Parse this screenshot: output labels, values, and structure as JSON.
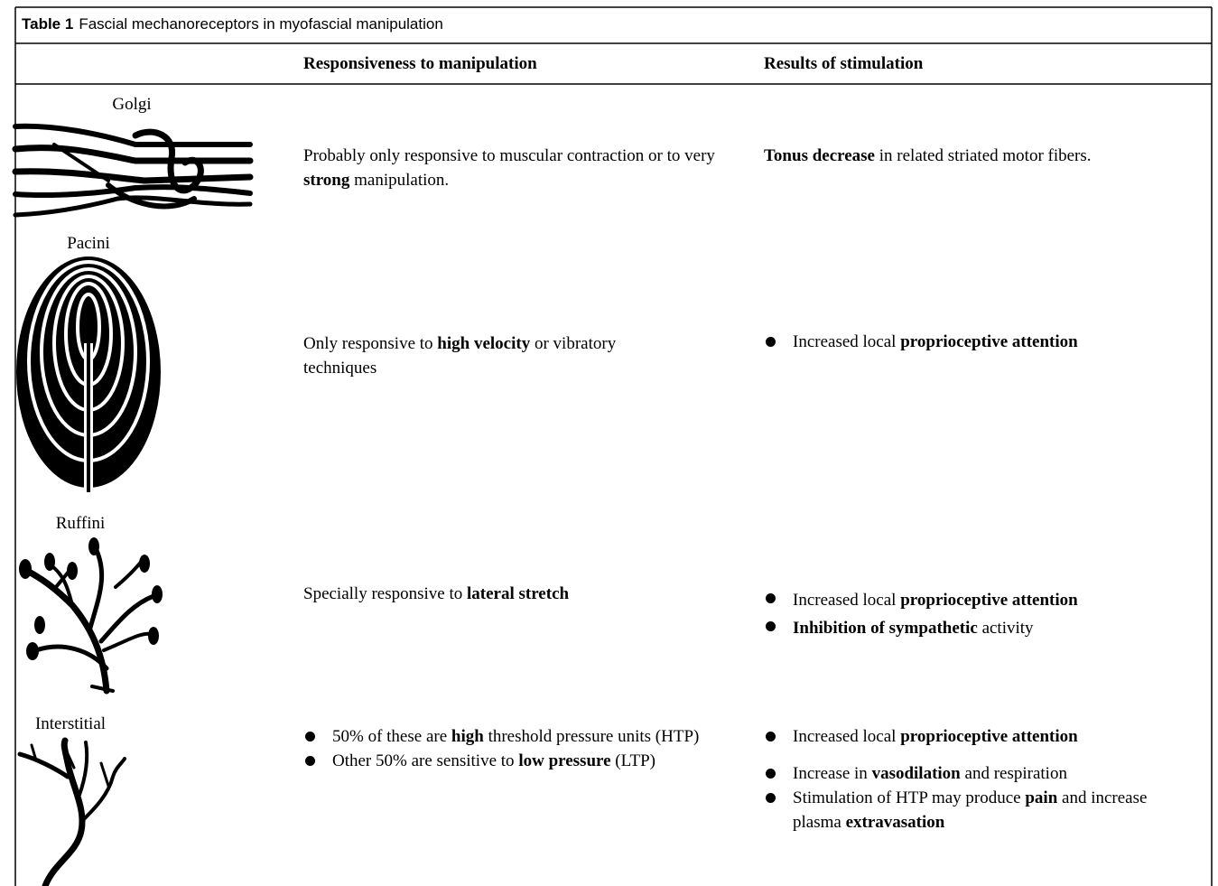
{
  "table": {
    "caption": {
      "label": "Table 1",
      "text": "Fascial mechanoreceptors in myofascial manipulation"
    },
    "columns": [
      "Responsiveness to manipulation",
      "Results of stimulation"
    ],
    "rows": [
      {
        "receptor": "Golgi",
        "responsiveness": {
          "list": false,
          "items": [
            [
              {
                "text": "Probably only responsive to muscular contraction or to very "
              },
              {
                "text": "strong",
                "bold": true
              },
              {
                "text": " manipulation."
              }
            ]
          ]
        },
        "results": {
          "list": false,
          "items": [
            [
              {
                "text": "Tonus decrease",
                "bold": true
              },
              {
                "text": " in related striated motor fibers."
              }
            ]
          ]
        }
      },
      {
        "receptor": "Pacini",
        "responsiveness": {
          "list": false,
          "items": [
            [
              {
                "text": "Only responsive to "
              },
              {
                "text": "high velocity",
                "bold": true
              },
              {
                "text": " or vibratory techniques"
              }
            ]
          ]
        },
        "results": {
          "list": true,
          "items": [
            [
              {
                "text": "Increased local "
              },
              {
                "text": "proprioceptive attention",
                "bold": true
              }
            ]
          ]
        }
      },
      {
        "receptor": "Ruffini",
        "responsiveness": {
          "list": false,
          "items": [
            [
              {
                "text": "Specially responsive to "
              },
              {
                "text": "lateral stretch",
                "bold": true
              }
            ]
          ]
        },
        "results": {
          "list": true,
          "items": [
            [
              {
                "text": "Increased local "
              },
              {
                "text": "proprioceptive attention",
                "bold": true
              }
            ],
            [
              {
                "text": "Inhibition of sympathetic",
                "bold": true
              },
              {
                "text": " activity"
              }
            ]
          ]
        }
      },
      {
        "receptor": "Interstitial",
        "responsiveness": {
          "list": true,
          "items": [
            [
              {
                "text": "50% of these are "
              },
              {
                "text": "high",
                "bold": true
              },
              {
                "text": " threshold pressure units (HTP)"
              }
            ],
            [
              {
                "text": "Other 50% are sensitive to "
              },
              {
                "text": "low pressure",
                "bold": true
              },
              {
                "text": " (LTP)"
              }
            ]
          ]
        },
        "results": {
          "list": true,
          "items": [
            [
              {
                "text": "Increased local "
              },
              {
                "text": "proprioceptive attention",
                "bold": true
              }
            ],
            [
              {
                "text": "Increase in "
              },
              {
                "text": "vasodilation",
                "bold": true
              },
              {
                "text": " and respiration"
              }
            ],
            [
              {
                "text": "Stimulation of HTP may produce "
              },
              {
                "text": "pain",
                "bold": true
              },
              {
                "text": " and increase plasma "
              },
              {
                "text": "extravasation",
                "bold": true
              }
            ]
          ]
        }
      }
    ]
  }
}
